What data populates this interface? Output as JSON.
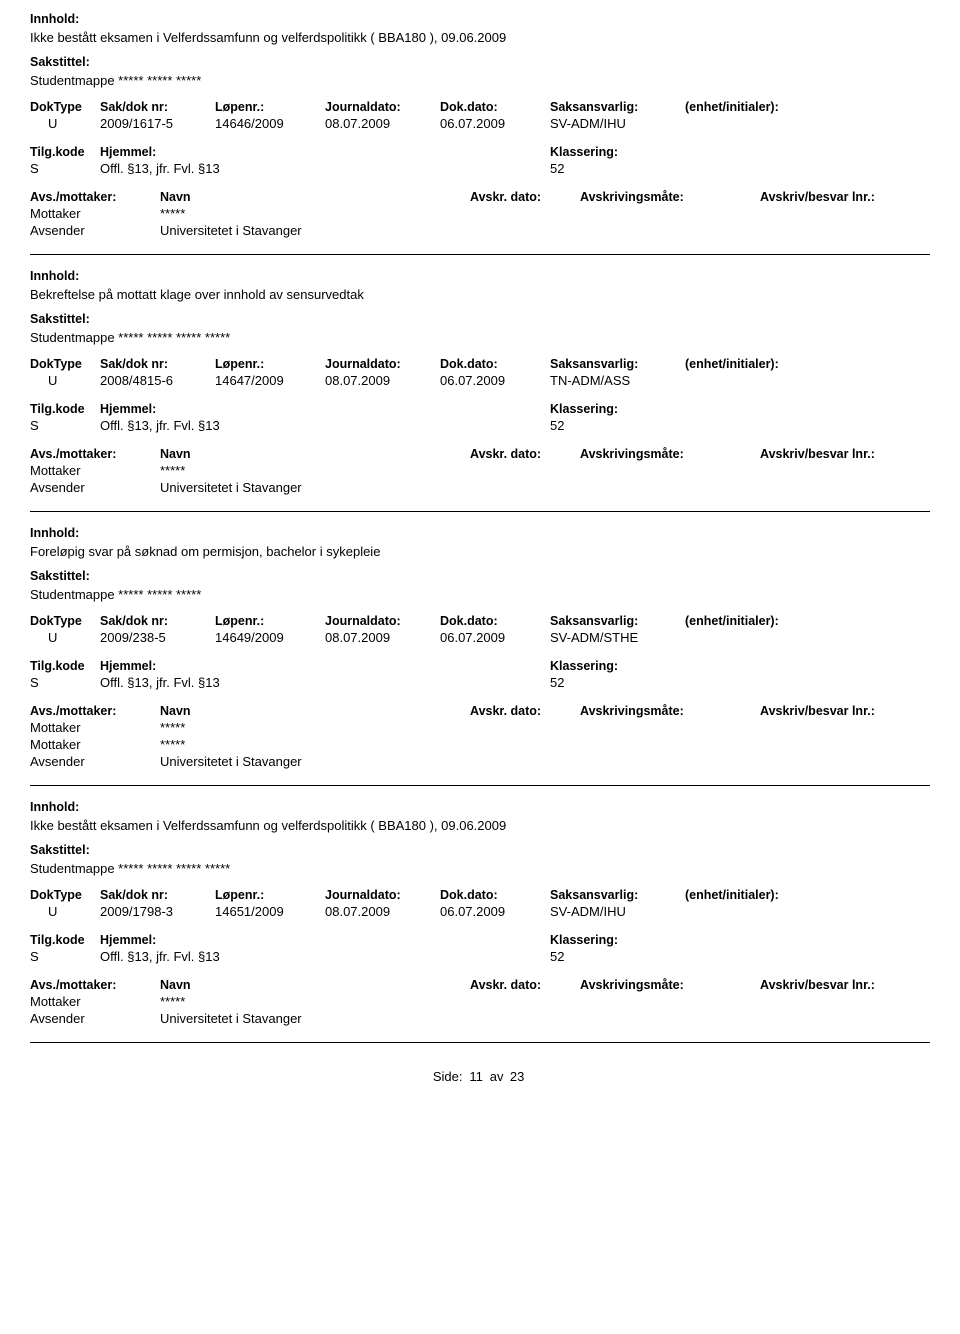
{
  "labels": {
    "innhold": "Innhold:",
    "sakstittel": "Sakstittel:",
    "doktype": "DokType",
    "sakdok": "Sak/dok nr:",
    "lopenr": "Løpenr.:",
    "journaldato": "Journaldato:",
    "dokdato": "Dok.dato:",
    "saksansvarlig": "Saksansvarlig:",
    "enhet": "(enhet/initialer):",
    "tilgkode": "Tilg.kode",
    "hjemmel": "Hjemmel:",
    "klassering": "Klassering:",
    "avsmottaker": "Avs./mottaker:",
    "navn": "Navn",
    "avskrdato": "Avskr. dato:",
    "avskrivingsmate": "Avskrivingsmåte:",
    "avskrivbesvar": "Avskriv/besvar lnr.:",
    "side": "Side:",
    "av": "av"
  },
  "page": {
    "current": "11",
    "total": "23"
  },
  "records": [
    {
      "innhold": "Ikke bestått eksamen i Velferdssamfunn og velferdspolitikk ( BBA180 ), 09.06.2009",
      "sakstittel": "Studentmappe  ***** *****  *****",
      "doktype": "U",
      "sakdok": "2009/1617-5",
      "lopenr": "14646/2009",
      "journaldato": "08.07.2009",
      "dokdato": "06.07.2009",
      "saksansvarlig": "SV-ADM/IHU",
      "tilgkode": "S",
      "hjemmel": "Offl. §13, jfr. Fvl. §13",
      "klassering": "52",
      "parties": [
        {
          "role": "Mottaker",
          "name": "*****"
        },
        {
          "role": "Avsender",
          "name": "Universitetet i Stavanger"
        }
      ]
    },
    {
      "innhold": "Bekreftelse på mottatt klage over innhold av sensurvedtak",
      "sakstittel": "Studentmappe ***** ***** ***** *****",
      "doktype": "U",
      "sakdok": "2008/4815-6",
      "lopenr": "14647/2009",
      "journaldato": "08.07.2009",
      "dokdato": "06.07.2009",
      "saksansvarlig": "TN-ADM/ASS",
      "tilgkode": "S",
      "hjemmel": "Offl. §13, jfr. Fvl. §13",
      "klassering": "52",
      "parties": [
        {
          "role": "Mottaker",
          "name": "*****"
        },
        {
          "role": "Avsender",
          "name": "Universitetet i Stavanger"
        }
      ]
    },
    {
      "innhold": "Foreløpig svar på søknad om permisjon, bachelor i sykepleie",
      "sakstittel": "Studentmappe ***** ***** *****",
      "doktype": "U",
      "sakdok": "2009/238-5",
      "lopenr": "14649/2009",
      "journaldato": "08.07.2009",
      "dokdato": "06.07.2009",
      "saksansvarlig": "SV-ADM/STHE",
      "tilgkode": "S",
      "hjemmel": "Offl. §13, jfr. Fvl. §13",
      "klassering": "52",
      "parties": [
        {
          "role": "Mottaker",
          "name": "*****"
        },
        {
          "role": "Mottaker",
          "name": "*****"
        },
        {
          "role": "Avsender",
          "name": "Universitetet i Stavanger"
        }
      ]
    },
    {
      "innhold": "Ikke bestått eksamen i Velferdssamfunn og velferdspolitikk ( BBA180 ), 09.06.2009",
      "sakstittel": "Studentmappe  ***** ***** *****  *****",
      "doktype": "U",
      "sakdok": "2009/1798-3",
      "lopenr": "14651/2009",
      "journaldato": "08.07.2009",
      "dokdato": "06.07.2009",
      "saksansvarlig": "SV-ADM/IHU",
      "tilgkode": "S",
      "hjemmel": "Offl. §13, jfr. Fvl. §13",
      "klassering": "52",
      "parties": [
        {
          "role": "Mottaker",
          "name": "*****"
        },
        {
          "role": "Avsender",
          "name": "Universitetet i Stavanger"
        }
      ]
    }
  ]
}
